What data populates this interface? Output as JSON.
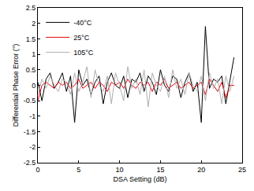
{
  "chart_data": {
    "type": "line",
    "x_label": "DSA Setting (dB)",
    "y_label": "Differential Phase Error (°)",
    "x": [
      0,
      0.5,
      1,
      1.5,
      2,
      2.5,
      3,
      3.5,
      4,
      4.5,
      5,
      5.5,
      6,
      6.5,
      7,
      7.5,
      8,
      8.5,
      9,
      9.5,
      10,
      10.5,
      11,
      11.5,
      12,
      12.5,
      13,
      13.5,
      14,
      14.5,
      15,
      15.5,
      16,
      16.5,
      17,
      17.5,
      18,
      18.5,
      19,
      19.5,
      20,
      20.5,
      21,
      21.5,
      22,
      22.5,
      23,
      23.5,
      24
    ],
    "series": [
      {
        "name": "-40°C",
        "color": "#000000",
        "values": [
          0.1,
          -0.5,
          0.2,
          0.4,
          -0.1,
          0.1,
          0.4,
          -0.2,
          0.3,
          -1.2,
          0.5,
          0.0,
          0.2,
          -0.3,
          0.1,
          0.3,
          -0.6,
          0.1,
          0.4,
          0.0,
          -0.1,
          0.3,
          -0.4,
          0.2,
          0.1,
          0.4,
          -0.2,
          0.3,
          0.1,
          -0.3,
          0.5,
          0.0,
          -0.2,
          0.3,
          0.2,
          -0.4,
          0.1,
          0.4,
          -0.2,
          0.1,
          -1.2,
          1.9,
          -0.1,
          0.2,
          0.1,
          0.3,
          -0.6,
          0.2,
          0.9
        ]
      },
      {
        "name": "25°C",
        "color": "#e8000b",
        "values": [
          -0.5,
          0.0,
          0.1,
          0.0,
          -0.1,
          0.1,
          0.0,
          0.1,
          -0.1,
          0.0,
          0.2,
          -0.1,
          0.0,
          0.1,
          -0.1,
          0.1,
          0.0,
          -0.2,
          0.1,
          0.0,
          0.1,
          -0.1,
          0.2,
          0.0,
          -0.1,
          0.1,
          0.0,
          0.1,
          -0.2,
          0.1,
          0.0,
          0.2,
          -0.1,
          0.0,
          0.1,
          -0.1,
          0.0,
          0.1,
          -0.1,
          0.0,
          0.1,
          -0.3,
          0.2,
          0.0,
          -0.2,
          0.1,
          -0.4,
          0.0,
          0.0
        ]
      },
      {
        "name": "105°C",
        "color": "#b0b0b0",
        "values": [
          -0.3,
          0.2,
          -0.1,
          0.3,
          0.0,
          -0.2,
          0.2,
          0.1,
          -0.3,
          0.4,
          -0.2,
          0.1,
          0.6,
          -0.4,
          0.5,
          0.0,
          -0.2,
          0.3,
          -0.6,
          0.4,
          0.0,
          -0.5,
          0.6,
          -0.1,
          0.2,
          -0.3,
          0.5,
          -0.7,
          0.4,
          0.0,
          -0.2,
          0.3,
          -0.4,
          0.5,
          -0.1,
          0.2,
          -0.3,
          0.4,
          0.0,
          -0.2,
          0.3,
          -0.5,
          0.4,
          -0.1,
          0.2,
          -0.6,
          0.3,
          -0.2,
          0.3
        ]
      }
    ],
    "xlim": [
      0,
      25
    ],
    "xticks": [
      0,
      5,
      10,
      15,
      20,
      25
    ],
    "ylim": [
      -2.5,
      2.5
    ],
    "yticks": [
      -2.5,
      -2,
      -1.5,
      -1,
      -0.5,
      0,
      0.5,
      1,
      1.5,
      2,
      2.5
    ],
    "grid": false,
    "legend": "upper left"
  }
}
